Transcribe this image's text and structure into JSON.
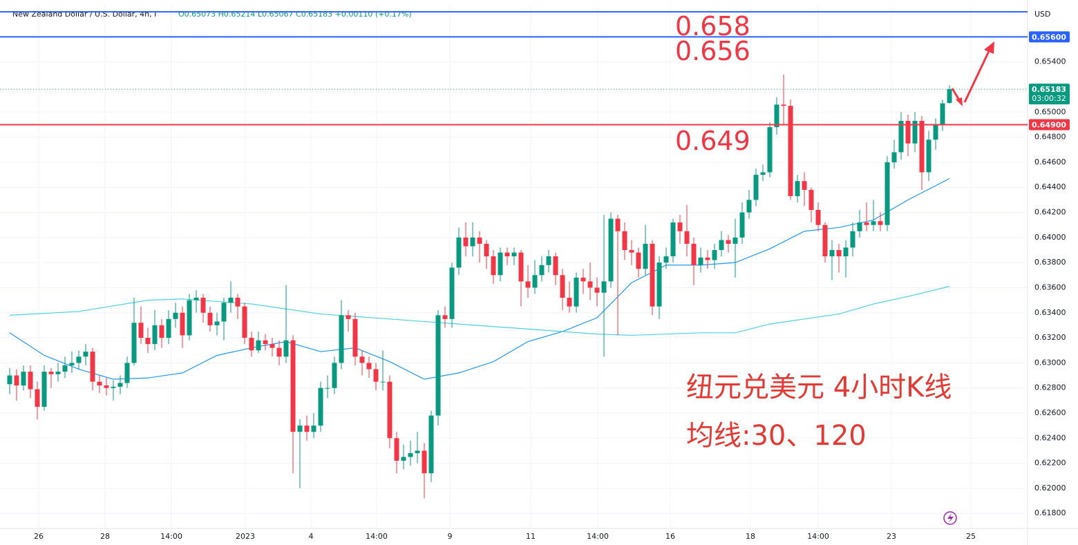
{
  "chart_data": {
    "type": "candlestick",
    "title": "New Zealand Dollar / U.S. Dollar, 4h, I",
    "ohlc_header": "O0.65073 H0.65214 L0.65067 C0.65183 +0.00110 (+0.17%)",
    "currency": "USD",
    "up_color": "#089981",
    "down_color": "#f23645",
    "open": [
      0.6283,
      0.629,
      0.6282,
      0.6293,
      0.6279,
      0.6265,
      0.6293,
      0.6291,
      0.6293,
      0.6298,
      0.63,
      0.6305,
      0.6309,
      0.6285,
      0.6282,
      0.628,
      0.6281,
      0.6284,
      0.63,
      0.6332,
      0.632,
      0.6315,
      0.633,
      0.632,
      0.6335,
      0.634,
      0.6322,
      0.635,
      0.6352,
      0.634,
      0.633,
      0.6333,
      0.6348,
      0.6352,
      0.6345,
      0.632,
      0.631,
      0.6318,
      0.6315,
      0.6312,
      0.6305,
      0.6318,
      0.6245,
      0.625,
      0.6245,
      0.625,
      0.628,
      0.628,
      0.63,
      0.6338,
      0.6335,
      0.6305,
      0.63,
      0.6295,
      0.6285,
      0.6285,
      0.624,
      0.6222,
      0.6225,
      0.6228,
      0.623,
      0.6212,
      0.6258,
      0.6338,
      0.6335,
      0.6376,
      0.64,
      0.6393,
      0.64,
      0.6395,
      0.6385,
      0.637,
      0.6388,
      0.6385,
      0.6388,
      0.6365,
      0.636,
      0.637,
      0.6378,
      0.6385,
      0.637,
      0.6352,
      0.6345,
      0.6368,
      0.6365,
      0.636,
      0.6356,
      0.6365,
      0.6415,
      0.6405,
      0.639,
      0.6388,
      0.6375,
      0.6395,
      0.6345,
      0.638,
      0.6385,
      0.6412,
      0.6405,
      0.6395,
      0.6378,
      0.6384,
      0.6382,
      0.639,
      0.6398,
      0.6395,
      0.64,
      0.642,
      0.643,
      0.645,
      0.6452,
      0.6488,
      0.6506,
      0.6505,
      0.6433,
      0.6445,
      0.6438,
      0.6422,
      0.641,
      0.6385,
      0.639,
      0.6385,
      0.6392,
      0.6405,
      0.6412,
      0.641,
      0.6413,
      0.641,
      0.646,
      0.6468,
      0.6493,
      0.6475,
      0.6493,
      0.6452,
      0.6478,
      0.649,
      0.65073
    ],
    "high": [
      0.6296,
      0.6295,
      0.6298,
      0.6298,
      0.6285,
      0.6298,
      0.6296,
      0.63,
      0.6305,
      0.6309,
      0.631,
      0.6315,
      0.6312,
      0.629,
      0.6288,
      0.6286,
      0.629,
      0.6305,
      0.6352,
      0.6345,
      0.6328,
      0.6342,
      0.6335,
      0.6342,
      0.6348,
      0.6345,
      0.6355,
      0.6358,
      0.6355,
      0.6345,
      0.634,
      0.6352,
      0.6365,
      0.6355,
      0.6348,
      0.6325,
      0.6325,
      0.6323,
      0.632,
      0.6318,
      0.6362,
      0.6322,
      0.6255,
      0.6258,
      0.626,
      0.6285,
      0.629,
      0.6305,
      0.635,
      0.6342,
      0.634,
      0.631,
      0.6305,
      0.63,
      0.631,
      0.629,
      0.6245,
      0.6235,
      0.6238,
      0.6245,
      0.6236,
      0.6262,
      0.6342,
      0.6345,
      0.638,
      0.6408,
      0.6412,
      0.6412,
      0.6405,
      0.6398,
      0.639,
      0.6392,
      0.6392,
      0.6392,
      0.639,
      0.6378,
      0.6382,
      0.6385,
      0.639,
      0.6388,
      0.6375,
      0.6365,
      0.6372,
      0.6375,
      0.638,
      0.6368,
      0.6418,
      0.642,
      0.6418,
      0.6412,
      0.6398,
      0.6392,
      0.641,
      0.6398,
      0.6385,
      0.6392,
      0.6415,
      0.6418,
      0.6426,
      0.64,
      0.6392,
      0.639,
      0.6395,
      0.6405,
      0.6402,
      0.6415,
      0.6428,
      0.6438,
      0.6455,
      0.6458,
      0.6492,
      0.6512,
      0.653,
      0.651,
      0.645,
      0.6452,
      0.644,
      0.6428,
      0.6412,
      0.6398,
      0.6395,
      0.6398,
      0.6412,
      0.6422,
      0.6428,
      0.643,
      0.642,
      0.6465,
      0.6478,
      0.65,
      0.6498,
      0.65,
      0.6497,
      0.6485,
      0.6495,
      0.651,
      0.65214
    ],
    "low": [
      0.6275,
      0.627,
      0.6278,
      0.6272,
      0.6255,
      0.6262,
      0.628,
      0.6285,
      0.6288,
      0.6292,
      0.6295,
      0.6298,
      0.6278,
      0.6276,
      0.6274,
      0.627,
      0.6275,
      0.628,
      0.6298,
      0.6315,
      0.6308,
      0.631,
      0.6312,
      0.6315,
      0.6328,
      0.6312,
      0.6318,
      0.634,
      0.6332,
      0.6325,
      0.6322,
      0.6318,
      0.634,
      0.6335,
      0.6315,
      0.6305,
      0.6308,
      0.631,
      0.6305,
      0.6298,
      0.63,
      0.6212,
      0.62,
      0.6238,
      0.624,
      0.6245,
      0.6272,
      0.6275,
      0.6295,
      0.6325,
      0.6298,
      0.629,
      0.6288,
      0.6278,
      0.6278,
      0.6232,
      0.6212,
      0.6215,
      0.6218,
      0.622,
      0.6192,
      0.6205,
      0.625,
      0.6328,
      0.6328,
      0.637,
      0.6385,
      0.6385,
      0.638,
      0.6375,
      0.6363,
      0.6365,
      0.6378,
      0.6378,
      0.6345,
      0.6352,
      0.6355,
      0.6365,
      0.6372,
      0.6362,
      0.6342,
      0.634,
      0.634,
      0.6355,
      0.635,
      0.6345,
      0.6305,
      0.636,
      0.6322,
      0.6382,
      0.6378,
      0.6368,
      0.637,
      0.6338,
      0.6335,
      0.6375,
      0.638,
      0.6395,
      0.6385,
      0.6362,
      0.6372,
      0.6375,
      0.6375,
      0.6385,
      0.6388,
      0.6368,
      0.6395,
      0.6415,
      0.6425,
      0.6445,
      0.6448,
      0.6482,
      0.649,
      0.643,
      0.6428,
      0.6425,
      0.6412,
      0.6405,
      0.638,
      0.6366,
      0.6372,
      0.6368,
      0.6385,
      0.64,
      0.6405,
      0.6405,
      0.6405,
      0.6405,
      0.6455,
      0.6462,
      0.6465,
      0.6468,
      0.6438,
      0.6445,
      0.647,
      0.6485,
      0.65067
    ],
    "close": [
      0.629,
      0.6282,
      0.6293,
      0.6279,
      0.6265,
      0.6293,
      0.6291,
      0.6293,
      0.6298,
      0.63,
      0.6305,
      0.6309,
      0.6285,
      0.6282,
      0.628,
      0.6281,
      0.6284,
      0.63,
      0.6332,
      0.632,
      0.6315,
      0.633,
      0.632,
      0.6335,
      0.634,
      0.6322,
      0.635,
      0.6352,
      0.634,
      0.633,
      0.6333,
      0.6348,
      0.6352,
      0.6345,
      0.632,
      0.631,
      0.6318,
      0.6315,
      0.6312,
      0.6305,
      0.6318,
      0.6245,
      0.625,
      0.6245,
      0.625,
      0.628,
      0.628,
      0.63,
      0.6338,
      0.6335,
      0.6305,
      0.63,
      0.6295,
      0.6285,
      0.6285,
      0.624,
      0.6222,
      0.6225,
      0.6228,
      0.623,
      0.6212,
      0.6258,
      0.6338,
      0.6335,
      0.6376,
      0.64,
      0.6393,
      0.64,
      0.6395,
      0.6385,
      0.637,
      0.6388,
      0.6385,
      0.6388,
      0.6365,
      0.636,
      0.637,
      0.6378,
      0.6385,
      0.637,
      0.6352,
      0.6345,
      0.6368,
      0.6365,
      0.636,
      0.6356,
      0.6365,
      0.6415,
      0.6405,
      0.639,
      0.6388,
      0.6375,
      0.6395,
      0.6345,
      0.638,
      0.6385,
      0.6412,
      0.6405,
      0.6395,
      0.6378,
      0.6384,
      0.6382,
      0.639,
      0.6398,
      0.6395,
      0.64,
      0.642,
      0.643,
      0.645,
      0.6452,
      0.6488,
      0.6506,
      0.6505,
      0.6433,
      0.6445,
      0.6438,
      0.6422,
      0.641,
      0.6385,
      0.639,
      0.6385,
      0.6392,
      0.6405,
      0.6412,
      0.641,
      0.6413,
      0.641,
      0.646,
      0.6468,
      0.6493,
      0.6475,
      0.6493,
      0.6452,
      0.6478,
      0.649,
      0.6507,
      0.65183
    ],
    "series": [
      {
        "color": "#2196f3",
        "x": [
          0,
          5,
          10,
          15,
          20,
          25,
          30,
          35,
          40,
          45,
          50,
          55,
          60,
          65,
          70,
          75,
          80,
          85,
          90,
          95,
          100,
          105,
          110,
          115,
          120,
          125,
          130,
          136
        ],
        "values": [
          0.6324,
          0.6306,
          0.6295,
          0.6287,
          0.6288,
          0.6292,
          0.6306,
          0.6312,
          0.6317,
          0.6309,
          0.6312,
          0.6301,
          0.6287,
          0.6292,
          0.6301,
          0.6317,
          0.6325,
          0.6336,
          0.6364,
          0.6378,
          0.6378,
          0.638,
          0.6391,
          0.6405,
          0.6408,
          0.6414,
          0.643,
          0.6447
        ]
      },
      {
        "color": "#4dd0e1",
        "x": [
          0,
          10,
          20,
          25,
          35,
          45,
          55,
          65,
          75,
          85,
          90,
          100,
          105,
          110,
          115,
          120,
          125,
          130,
          136
        ],
        "values": [
          0.6338,
          0.6341,
          0.635,
          0.6351,
          0.6347,
          0.6339,
          0.6335,
          0.6331,
          0.6327,
          0.6323,
          0.6322,
          0.6324,
          0.6324,
          0.6331,
          0.6335,
          0.6339,
          0.6347,
          0.6353,
          0.6361
        ]
      }
    ],
    "xlim": [
      -1.4,
      147.3
    ],
    "xticks": [
      {
        "value": 4.2,
        "label": "26"
      },
      {
        "value": 13.8,
        "label": "28"
      },
      {
        "value": 23.4,
        "label": "14:00"
      },
      {
        "value": 34.1,
        "label": "2023"
      },
      {
        "value": 43.6,
        "label": "4"
      },
      {
        "value": 53.1,
        "label": "14:00"
      },
      {
        "value": 63.7,
        "label": "9"
      },
      {
        "value": 75.4,
        "label": "11"
      },
      {
        "value": 85.1,
        "label": "14:00"
      },
      {
        "value": 95.6,
        "label": "16"
      },
      {
        "value": 107.2,
        "label": "18"
      },
      {
        "value": 117,
        "label": "14:00"
      },
      {
        "value": 127.6,
        "label": "23"
      },
      {
        "value": 139.1,
        "label": "25"
      }
    ],
    "ylim": [
      0.6168,
      0.6585
    ],
    "yticks": [
      {
        "value": 0.654,
        "label": "0.65400"
      },
      {
        "value": 0.65,
        "label": "0.65000"
      },
      {
        "value": 0.648,
        "label": "0.64800"
      },
      {
        "value": 0.646,
        "label": "0.64600"
      },
      {
        "value": 0.644,
        "label": "0.64400"
      },
      {
        "value": 0.642,
        "label": "0.64200"
      },
      {
        "value": 0.64,
        "label": "0.64000"
      },
      {
        "value": 0.638,
        "label": "0.63800"
      },
      {
        "value": 0.636,
        "label": "0.63600"
      },
      {
        "value": 0.634,
        "label": "0.63400"
      },
      {
        "value": 0.632,
        "label": "0.63200"
      },
      {
        "value": 0.63,
        "label": "0.63000"
      },
      {
        "value": 0.628,
        "label": "0.62800"
      },
      {
        "value": 0.626,
        "label": "0.62600"
      },
      {
        "value": 0.624,
        "label": "0.62400"
      },
      {
        "value": 0.622,
        "label": "0.62200"
      },
      {
        "value": 0.62,
        "label": "0.62000"
      },
      {
        "value": 0.618,
        "label": "0.61800"
      }
    ],
    "levels": [
      {
        "value": 0.658,
        "color": "#2962ff"
      },
      {
        "value": 0.656,
        "label": "0.65600",
        "color": "#2962ff"
      },
      {
        "value": 0.649,
        "label": "0.64900",
        "color": "#f23645"
      }
    ],
    "last_price": {
      "value": 0.65183,
      "label": "0.65183",
      "countdown": "03:00:32",
      "color": "#089981"
    },
    "annotations": [
      "0.658",
      "0.656",
      "0.649"
    ],
    "notes": [
      "纽元兑美元 4小时K线",
      "均线:30、120"
    ]
  }
}
